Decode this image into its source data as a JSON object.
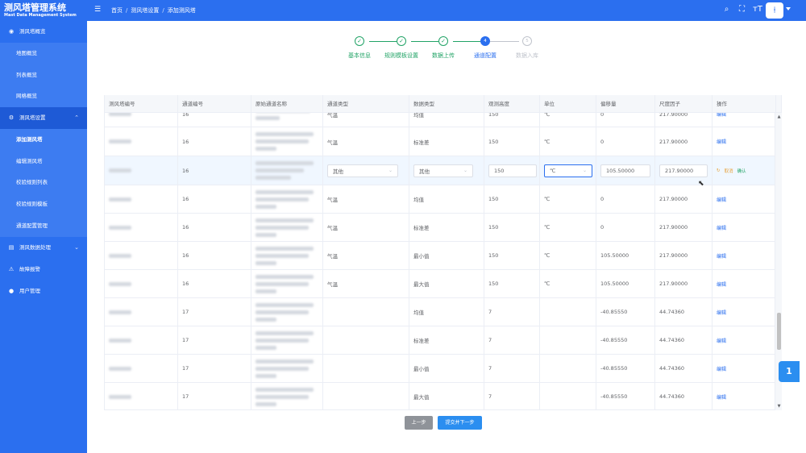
{
  "app": {
    "title": "测风塔管理系统",
    "subtitle": "Mast Data Management System"
  },
  "breadcrumb": [
    "首页",
    "测风塔设置",
    "添加测风塔"
  ],
  "toolbar_icons": [
    "search-icon",
    "fullscreen-icon",
    "font-size-icon"
  ],
  "sidebar": {
    "groups": [
      {
        "icon": "dashboard-icon",
        "label": "测风塔概览",
        "children": [
          "地图概览",
          "列表概览",
          "网格概览"
        ]
      },
      {
        "icon": "gear-icon",
        "label": "测风塔设置",
        "expanded": true,
        "children": [
          "添加测风塔",
          "编辑测风塔",
          "校验规则列表",
          "校验规则模板",
          "通道配置管理"
        ]
      },
      {
        "icon": "data-process-icon",
        "label": "测风数据处理",
        "children": []
      },
      {
        "icon": "alarm-icon",
        "label": "故障报警",
        "children": []
      },
      {
        "icon": "user-icon",
        "label": "用户管理",
        "children": []
      }
    ]
  },
  "steps": [
    {
      "label": "基本信息",
      "status": "done",
      "symbol": "✓"
    },
    {
      "label": "规则模板设置",
      "status": "done",
      "symbol": "✓"
    },
    {
      "label": "数据上传",
      "status": "done",
      "symbol": "✓"
    },
    {
      "label": "通道配置",
      "status": "active",
      "symbol": "4"
    },
    {
      "label": "数据入库",
      "status": "wait",
      "symbol": "5"
    }
  ],
  "table": {
    "columns": [
      "测风塔编号",
      "通道编号",
      "原始通道名称",
      "通道类型",
      "数据类型",
      "观测高度",
      "单位",
      "偏移量",
      "尺度因子",
      "操作"
    ],
    "edit_label": "编辑",
    "cancel_label": "取消",
    "confirm_label": "确认",
    "editing_row": {
      "channel": "16",
      "channel_type": "其他",
      "data_type": "其他",
      "height": "150",
      "unit": "℃",
      "offset": "105.50000",
      "scale": "217.90000"
    },
    "rows": [
      {
        "channel": "16",
        "channel_type": "气温",
        "data_type": "均值",
        "height": "150",
        "unit": "℃",
        "offset": "0",
        "scale": "217.90000"
      },
      {
        "channel": "16",
        "channel_type": "气温",
        "data_type": "标准差",
        "height": "150",
        "unit": "℃",
        "offset": "0",
        "scale": "217.90000"
      },
      {
        "channel": "16",
        "channel_type": "气温",
        "data_type": "均值",
        "height": "150",
        "unit": "℃",
        "offset": "0",
        "scale": "217.90000"
      },
      {
        "channel": "16",
        "channel_type": "气温",
        "data_type": "标准差",
        "height": "150",
        "unit": "℃",
        "offset": "0",
        "scale": "217.90000"
      },
      {
        "channel": "16",
        "channel_type": "气温",
        "data_type": "最小值",
        "height": "150",
        "unit": "℃",
        "offset": "105.50000",
        "scale": "217.90000"
      },
      {
        "channel": "16",
        "channel_type": "气温",
        "data_type": "最大值",
        "height": "150",
        "unit": "℃",
        "offset": "105.50000",
        "scale": "217.90000"
      },
      {
        "channel": "17",
        "channel_type": "",
        "data_type": "均值",
        "height": "7",
        "unit": "",
        "offset": "-40.85550",
        "scale": "44.74360"
      },
      {
        "channel": "17",
        "channel_type": "",
        "data_type": "标准差",
        "height": "7",
        "unit": "",
        "offset": "-40.85550",
        "scale": "44.74360"
      },
      {
        "channel": "17",
        "channel_type": "",
        "data_type": "最小值",
        "height": "7",
        "unit": "",
        "offset": "-40.85550",
        "scale": "44.74360"
      },
      {
        "channel": "17",
        "channel_type": "",
        "data_type": "最大值",
        "height": "7",
        "unit": "",
        "offset": "-40.85550",
        "scale": "44.74360"
      }
    ]
  },
  "buttons": {
    "prev": "上一步",
    "next": "提交并下一步"
  },
  "float_button": "1",
  "colors": {
    "primary": "#2b6fef",
    "success": "#21a366",
    "warning": "#e6a23c"
  }
}
